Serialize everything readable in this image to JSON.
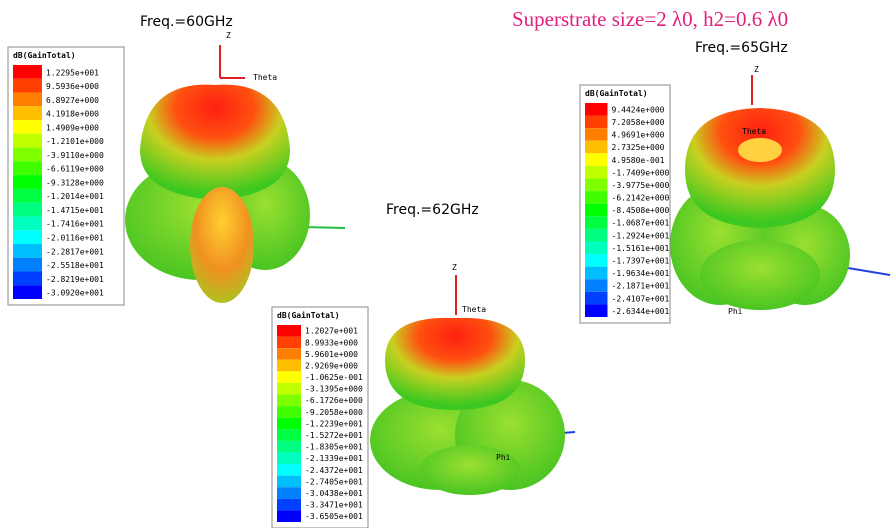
{
  "title": "Superstrate size=2 λ0, h2=0.6 λ0",
  "panels": [
    {
      "freq": "Freq.=60GHz",
      "legend_title": "dB(GainTotal)",
      "legend": [
        "1.2295e+001",
        "9.5936e+000",
        "6.8927e+000",
        "4.1918e+000",
        "1.4909e+000",
        "-1.2101e+000",
        "-3.9110e+000",
        "-6.6119e+000",
        "-9.3128e+000",
        "-1.2014e+001",
        "-1.4715e+001",
        "-1.7416e+001",
        "-2.0116e+001",
        "-2.2817e+001",
        "-2.5518e+001",
        "-2.8219e+001",
        "-3.0920e+001"
      ],
      "axes": [
        "Z",
        "Theta"
      ]
    },
    {
      "freq": "Freq.=62GHz",
      "legend_title": "dB(GainTotal)",
      "legend": [
        "1.2027e+001",
        "8.9933e+000",
        "5.9601e+000",
        "2.9269e+000",
        "-1.0625e-001",
        "-3.1395e+000",
        "-6.1726e+000",
        "-9.2058e+000",
        "-1.2239e+001",
        "-1.5272e+001",
        "-1.8305e+001",
        "-2.1339e+001",
        "-2.4372e+001",
        "-2.7405e+001",
        "-3.0438e+001",
        "-3.3471e+001",
        "-3.6505e+001"
      ],
      "axes": [
        "Z",
        "Theta",
        "Phi"
      ]
    },
    {
      "freq": "Freq.=65GHz",
      "legend_title": "dB(GainTotal)",
      "legend": [
        "9.4424e+000",
        "7.2058e+000",
        "4.9691e+000",
        "2.7325e+000",
        "4.9580e-001",
        "-1.7409e+000",
        "-3.9775e+000",
        "-6.2142e+000",
        "-8.4508e+000",
        "-1.0687e+001",
        "-1.2924e+001",
        "-1.5161e+001",
        "-1.7397e+001",
        "-1.9634e+001",
        "-2.1871e+001",
        "-2.4107e+001",
        "-2.6344e+001"
      ],
      "axes": [
        "Z",
        "Theta",
        "Phi"
      ]
    }
  ]
}
